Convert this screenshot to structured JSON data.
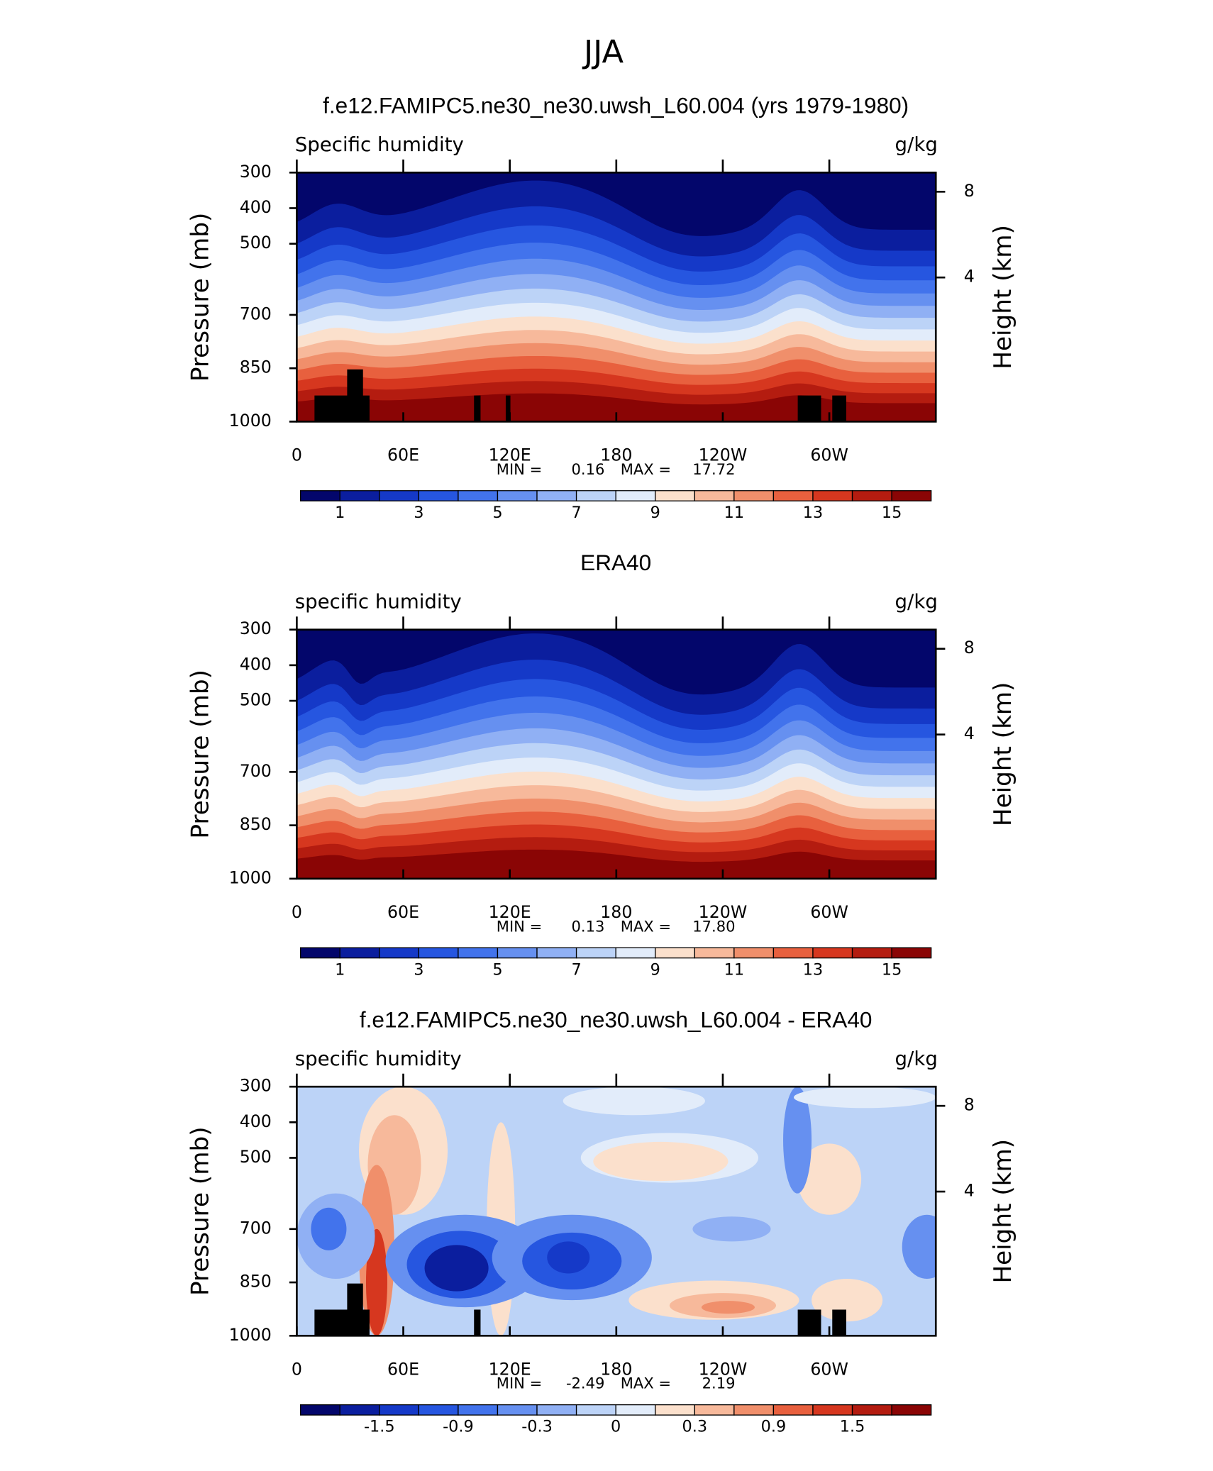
{
  "title": "JJA",
  "chart_data": [
    {
      "type": "contour",
      "title": "f.e12.FAMIPC5.ne30_ne30.uwsh_L60.004 (yrs 1979-1980)",
      "left_label": "Specific humidity",
      "right_label": "g/kg",
      "ylabel": "Pressure (mb)",
      "y2label": "Height (km)",
      "xlim": [
        0,
        360
      ],
      "xticks": [
        0,
        {
          "value": 60,
          "label": "60E"
        },
        {
          "value": 120,
          "label": "120E"
        },
        {
          "value": 180,
          "label": "180"
        },
        {
          "value": 240,
          "label": "120W"
        },
        {
          "value": 300,
          "label": "60W"
        }
      ],
      "ylim": [
        1000,
        300
      ],
      "yticks": [
        300,
        400,
        500,
        700,
        850,
        1000
      ],
      "y2ticks": [
        4,
        8
      ],
      "stats": [
        {
          "label": "MIN =",
          "value": 0.16
        },
        {
          "label": "MAX =",
          "value": 17.72
        }
      ],
      "levels": [
        1,
        2,
        3,
        4,
        5,
        6,
        7,
        8,
        9,
        10,
        11,
        12,
        13,
        14,
        15
      ],
      "colorbar_ticks": [
        1,
        3,
        5,
        7,
        9,
        11,
        13,
        15
      ],
      "colors": [
        "#03066b",
        "#0b1e9e",
        "#1539c8",
        "#2656e0",
        "#4273ec",
        "#6690f0",
        "#90b0f4",
        "#bcd3f7",
        "#e2ecfa",
        "#fbe0cc",
        "#f7b99b",
        "#f08f6b",
        "#e8603e",
        "#d6371f",
        "#b41c10",
        "#8a0505"
      ]
    },
    {
      "type": "contour",
      "title": "ERA40",
      "left_label": "specific humidity",
      "right_label": "g/kg",
      "ylabel": "Pressure (mb)",
      "y2label": "Height (km)",
      "xlim": [
        0,
        360
      ],
      "xticks": [
        0,
        {
          "value": 60,
          "label": "60E"
        },
        {
          "value": 120,
          "label": "120E"
        },
        {
          "value": 180,
          "label": "180"
        },
        {
          "value": 240,
          "label": "120W"
        },
        {
          "value": 300,
          "label": "60W"
        }
      ],
      "ylim": [
        1000,
        300
      ],
      "yticks": [
        300,
        400,
        500,
        700,
        850,
        1000
      ],
      "y2ticks": [
        4,
        8
      ],
      "stats": [
        {
          "label": "MIN =",
          "value": 0.13
        },
        {
          "label": "MAX =",
          "value": 17.8,
          "value_label": "17.80"
        }
      ],
      "levels": [
        1,
        2,
        3,
        4,
        5,
        6,
        7,
        8,
        9,
        10,
        11,
        12,
        13,
        14,
        15
      ],
      "colorbar_ticks": [
        1,
        3,
        5,
        7,
        9,
        11,
        13,
        15
      ],
      "colors": [
        "#03066b",
        "#0b1e9e",
        "#1539c8",
        "#2656e0",
        "#4273ec",
        "#6690f0",
        "#90b0f4",
        "#bcd3f7",
        "#e2ecfa",
        "#fbe0cc",
        "#f7b99b",
        "#f08f6b",
        "#e8603e",
        "#d6371f",
        "#b41c10",
        "#8a0505"
      ]
    },
    {
      "type": "difference",
      "title": "f.e12.FAMIPC5.ne30_ne30.uwsh_L60.004 - ERA40",
      "left_label": "specific humidity",
      "right_label": "g/kg",
      "ylabel": "Pressure (mb)",
      "y2label": "Height (km)",
      "xlim": [
        0,
        360
      ],
      "xticks": [
        0,
        {
          "value": 60,
          "label": "60E"
        },
        {
          "value": 120,
          "label": "120E"
        },
        {
          "value": 180,
          "label": "180"
        },
        {
          "value": 240,
          "label": "120W"
        },
        {
          "value": 300,
          "label": "60W"
        }
      ],
      "ylim": [
        1000,
        300
      ],
      "yticks": [
        300,
        400,
        500,
        700,
        850,
        1000
      ],
      "y2ticks": [
        4,
        8
      ],
      "stats": [
        {
          "label": "MIN =",
          "value": -2.49
        },
        {
          "label": "MAX =",
          "value": 2.19
        }
      ],
      "levels": [
        -1.8,
        -1.5,
        -1.2,
        -0.9,
        -0.6,
        -0.3,
        -0.1,
        0,
        0.1,
        0.3,
        0.6,
        0.9,
        1.2,
        1.5,
        1.8
      ],
      "colorbar_ticks": [
        -1.5,
        -0.9,
        -0.3,
        0,
        0.3,
        0.9,
        1.5
      ],
      "colors": [
        "#03066b",
        "#0b1e9e",
        "#1539c8",
        "#2656e0",
        "#4273ec",
        "#6690f0",
        "#90b0f4",
        "#bcd3f7",
        "#e2ecfa",
        "#fbe0cc",
        "#f7b99b",
        "#f08f6b",
        "#e8603e",
        "#d6371f",
        "#b41c10",
        "#8a0505"
      ]
    }
  ]
}
